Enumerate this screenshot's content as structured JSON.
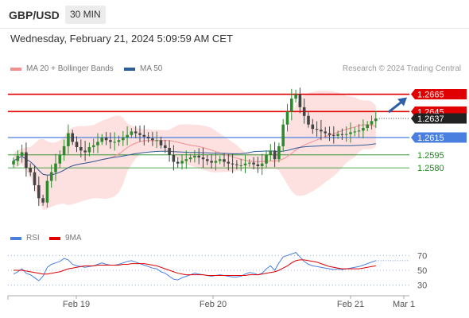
{
  "header": {
    "symbol": "GBP/USD",
    "timeframe": "30 MIN"
  },
  "datetime": "Wednesday, February 21, 2024 5:09:59 AM CET",
  "credit": "Research © 2024 Trading Central",
  "colors": {
    "resistance": "#e00000",
    "pivot": "#4a7fe0",
    "support": "#1a8a1a",
    "bb_fill": "#fde0e0",
    "ma20": "#f09090",
    "ma50": "#2d5d9a",
    "up": "#2d8a2d",
    "down": "#444444",
    "arrow": "#2f5fa8",
    "rsi": "#4a7fe0",
    "rsi_ma": "#e00000"
  },
  "chart_data": [
    {
      "type": "candlestick",
      "legend": [
        "MA 20 + Bollinger Bands",
        "MA 50"
      ],
      "x_ticks": [
        "Feb 19",
        "Feb 20",
        "Feb 21",
        "Mar 1"
      ],
      "ylim": [
        1.2515,
        1.2682
      ],
      "levels": [
        {
          "label": "1.2665",
          "value": 1.2665,
          "kind": "resistance"
        },
        {
          "label": "1.2645",
          "value": 1.2645,
          "kind": "resistance"
        },
        {
          "label": "1.2637",
          "value": 1.2637,
          "kind": "current"
        },
        {
          "label": "1.2615",
          "value": 1.2615,
          "kind": "pivot"
        },
        {
          "label": "1.2595",
          "value": 1.2595,
          "kind": "support"
        },
        {
          "label": "1.2580",
          "value": 1.258,
          "kind": "support"
        }
      ],
      "close": [
        1.2588,
        1.2594,
        1.2598,
        1.258,
        1.2575,
        1.256,
        1.2545,
        1.254,
        1.2565,
        1.2575,
        1.2585,
        1.2595,
        1.2605,
        1.262,
        1.261,
        1.2604,
        1.26,
        1.2598,
        1.2604,
        1.2606,
        1.261,
        1.2615,
        1.2612,
        1.261,
        1.261,
        1.2612,
        1.2615,
        1.2618,
        1.2622,
        1.262,
        1.2618,
        1.2616,
        1.2614,
        1.2612,
        1.2612,
        1.2606,
        1.2603,
        1.2595,
        1.2587,
        1.2585,
        1.2588,
        1.259,
        1.2592,
        1.2594,
        1.2592,
        1.259,
        1.2588,
        1.2586,
        1.2588,
        1.259,
        1.2587,
        1.2585,
        1.2584,
        1.2583,
        1.2583,
        1.2585,
        1.2586,
        1.2584,
        1.2582,
        1.2585,
        1.2595,
        1.26,
        1.259,
        1.2605,
        1.263,
        1.2645,
        1.266,
        1.2665,
        1.265,
        1.264,
        1.263,
        1.2625,
        1.2624,
        1.2622,
        1.262,
        1.2618,
        1.2617,
        1.2619,
        1.2618,
        1.2619,
        1.2621,
        1.2622,
        1.2623,
        1.2626,
        1.263,
        1.2634,
        1.2637
      ],
      "rsi": [
        45,
        48,
        52,
        46,
        44,
        40,
        36,
        42,
        54,
        58,
        60,
        62,
        66,
        64,
        58,
        56,
        55,
        54,
        55,
        56,
        58,
        60,
        58,
        57,
        57,
        58,
        60,
        62,
        63,
        61,
        59,
        57,
        55,
        53,
        52,
        48,
        46,
        42,
        38,
        37,
        40,
        42,
        44,
        46,
        45,
        44,
        43,
        42,
        43,
        44,
        43,
        42,
        41,
        41,
        42,
        45,
        47,
        46,
        44,
        46,
        52,
        56,
        50,
        60,
        68,
        70,
        72,
        74,
        68,
        62,
        58,
        56,
        55,
        54,
        53,
        52,
        51,
        52,
        51,
        52,
        53,
        54,
        55,
        57,
        59,
        61,
        63
      ],
      "rsi_ma": [
        50,
        50,
        50,
        49,
        48,
        47,
        46,
        45,
        45,
        46,
        47,
        48,
        50,
        52,
        53,
        54,
        55,
        56,
        56,
        56,
        57,
        57,
        57,
        57,
        57,
        57,
        58,
        58,
        59,
        59,
        59,
        59,
        58,
        57,
        56,
        54,
        52,
        50,
        48,
        46,
        45,
        44,
        44,
        44,
        44,
        44,
        43,
        43,
        43,
        43,
        43,
        43,
        43,
        43,
        43,
        43,
        44,
        44,
        44,
        45,
        46,
        47,
        48,
        50,
        53,
        56,
        60,
        63,
        64,
        64,
        63,
        62,
        61,
        59,
        57,
        55,
        54,
        53,
        52,
        52,
        52,
        52,
        52,
        53,
        54,
        55,
        56
      ]
    },
    {
      "type": "line",
      "legend": [
        "RSI",
        "9MA"
      ],
      "ylim": [
        20,
        80
      ],
      "y_ticks": [
        "70",
        "50",
        "30"
      ]
    }
  ]
}
